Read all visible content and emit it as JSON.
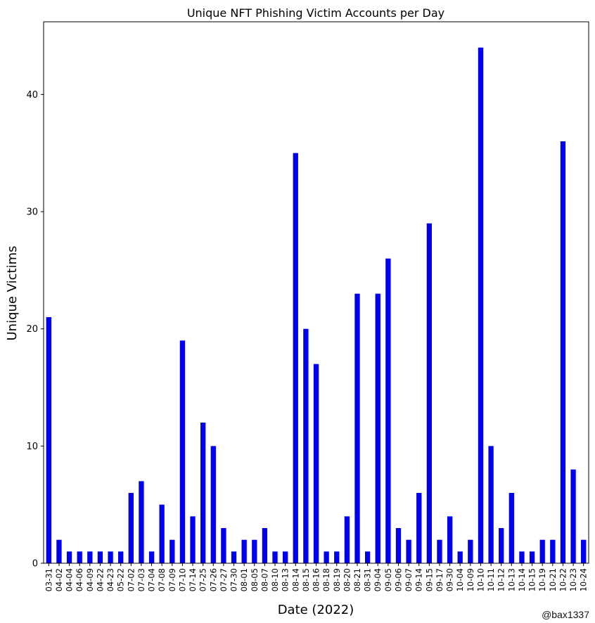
{
  "chart_data": {
    "type": "bar",
    "title": "Unique NFT Phishing Victim Accounts per Day",
    "xlabel": "Date (2022)",
    "ylabel": "Unique Victims",
    "ylim": [
      0,
      46.2
    ],
    "yticks": [
      0,
      10,
      20,
      30,
      40
    ],
    "grid": false,
    "bar_color": "#0000ee",
    "categories": [
      "03-31",
      "04-02",
      "04-04",
      "04-06",
      "04-09",
      "04-22",
      "04-23",
      "05-22",
      "07-02",
      "07-03",
      "07-04",
      "07-08",
      "07-09",
      "07-10",
      "07-14",
      "07-25",
      "07-26",
      "07-27",
      "07-30",
      "08-01",
      "08-05",
      "08-07",
      "08-10",
      "08-13",
      "08-14",
      "08-15",
      "08-16",
      "08-18",
      "08-19",
      "08-20",
      "08-21",
      "08-31",
      "09-04",
      "09-05",
      "09-06",
      "09-07",
      "09-14",
      "09-15",
      "09-17",
      "09-30",
      "10-04",
      "10-09",
      "10-10",
      "10-11",
      "10-12",
      "10-13",
      "10-14",
      "10-15",
      "10-19",
      "10-21",
      "10-22",
      "10-23",
      "10-24"
    ],
    "values": [
      21,
      2,
      1,
      1,
      1,
      1,
      1,
      1,
      6,
      7,
      1,
      5,
      2,
      19,
      4,
      12,
      10,
      3,
      1,
      2,
      2,
      3,
      1,
      1,
      35,
      20,
      17,
      1,
      1,
      4,
      23,
      1,
      23,
      26,
      3,
      2,
      6,
      29,
      2,
      4,
      1,
      2,
      44,
      10,
      3,
      6,
      1,
      1,
      2,
      2,
      36,
      8,
      2
    ]
  },
  "credit": "@bax1337"
}
